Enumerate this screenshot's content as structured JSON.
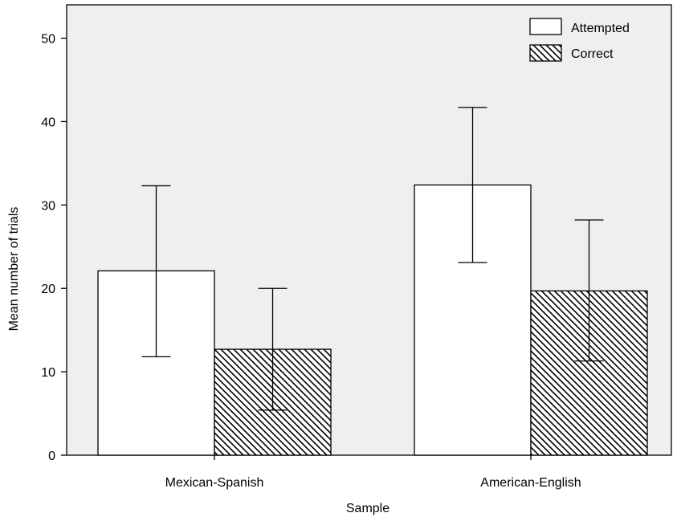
{
  "chart_data": {
    "type": "bar",
    "xlabel": "Sample",
    "ylabel": "Mean number of trials",
    "categories": [
      "Mexican-Spanish",
      "American-English"
    ],
    "ylim": [
      0,
      54
    ],
    "yticks": [
      0,
      10,
      20,
      30,
      40,
      50
    ],
    "grid": false,
    "legend_position": "top-right",
    "background_color": "#efefef",
    "series": [
      {
        "name": "Attempted",
        "fill": "white",
        "values": [
          22.1,
          32.4
        ],
        "error_low": [
          11.8,
          23.1
        ],
        "error_high": [
          32.3,
          41.7
        ]
      },
      {
        "name": "Correct",
        "fill": "diagonal-hatch",
        "values": [
          12.7,
          19.7
        ],
        "error_low": [
          5.4,
          11.3
        ],
        "error_high": [
          20.0,
          28.2
        ]
      }
    ]
  }
}
